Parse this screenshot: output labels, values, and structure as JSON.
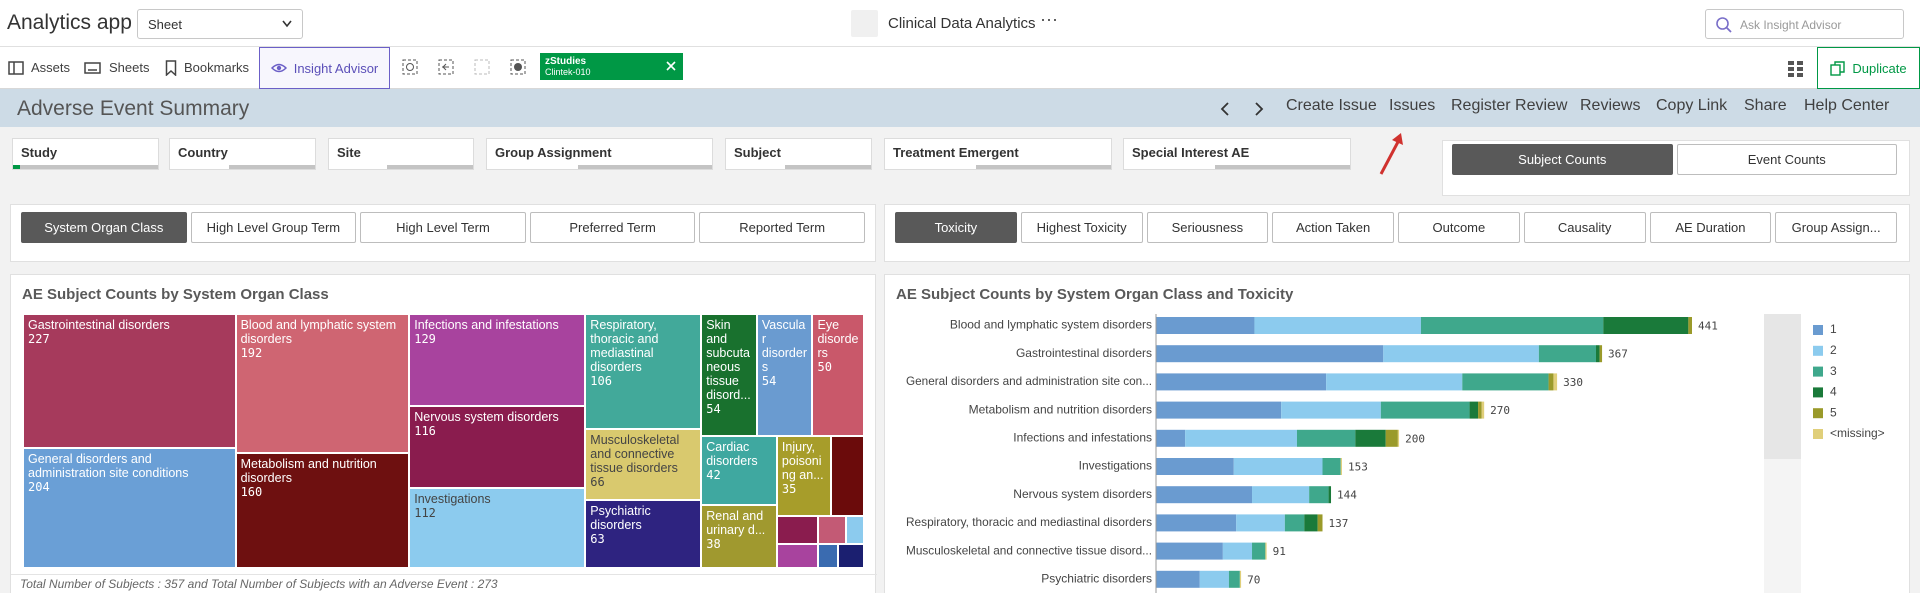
{
  "app": {
    "title": "Analytics app",
    "sheet_select": "Sheet",
    "document_title": "Clinical Data Analytics",
    "search_placeholder": "Ask Insight Advisor"
  },
  "toolbar": {
    "items": [
      "Assets",
      "Sheets",
      "Bookmarks"
    ],
    "insight_advisor": "Insight Advisor",
    "selection": {
      "field": "zStudies",
      "value": "Clintek-010"
    },
    "duplicate": "Duplicate"
  },
  "sheet": {
    "title": "Adverse Event Summary",
    "nav": [
      "Create Issue",
      "Issues",
      "Register Review",
      "Reviews",
      "Copy Link",
      "Share",
      "Help Center"
    ]
  },
  "filters": [
    "Study",
    "Country",
    "Site",
    "Group Assignment",
    "Subject",
    "Treatment Emergent",
    "Special Interest AE"
  ],
  "count_toggle": {
    "options": [
      "Subject Counts",
      "Event Counts"
    ],
    "selected": 0
  },
  "dimension_tabs": {
    "options": [
      "System Organ Class",
      "High Level Group Term",
      "High Level Term",
      "Preferred Term",
      "Reported Term"
    ],
    "selected": 0
  },
  "measure_tabs": {
    "options": [
      "Toxicity",
      "Highest Toxicity",
      "Seriousness",
      "Action Taken",
      "Outcome",
      "Causality",
      "AE Duration",
      "Group Assign..."
    ],
    "selected": 0
  },
  "chart_data": [
    {
      "type": "treemap",
      "title": "AE Subject Counts by System Organ Class",
      "categories": [
        "Gastrointestinal disorders",
        "General disorders and administration site conditions",
        "Blood and lymphatic system disorders",
        "Metabolism and nutrition disorders",
        "Infections and infestations",
        "Nervous system disorders",
        "Investigations",
        "Respiratory, thoracic and mediastinal disorders",
        "Musculoskeletal and connective tissue disorders",
        "Psychiatric disorders",
        "Skin and subcutaneous tissue disord...",
        "Vascular disorders",
        "Eye disorders",
        "Cardiac disorders",
        "Renal and urinary d...",
        "Injury, poisoning an...",
        null,
        null,
        null,
        null,
        null,
        null,
        null
      ],
      "values": [
        227,
        204,
        192,
        160,
        129,
        116,
        112,
        106,
        66,
        63,
        54,
        54,
        50,
        42,
        38,
        35,
        21,
        9,
        6,
        4,
        8,
        4,
        5
      ],
      "colors": [
        "#a63a5c",
        "#6a9fd6",
        "#cf6572",
        "#6e1010",
        "#a8439e",
        "#8a1c4e",
        "#8ccbee",
        "#42a99a",
        "#d9c96e",
        "#2e2380",
        "#19712e",
        "#6a9bd0",
        "#c9586a",
        "#3fa8a0",
        "#a0992f",
        "#a79d2a",
        "#6b0b0b",
        "#8a1c4e",
        "#c35a75",
        "#8ccbee",
        "#a8439e",
        "#3a6bb0",
        "#1b1f70"
      ]
    },
    {
      "type": "bar",
      "orientation": "horizontal",
      "stacked": true,
      "title": "AE Subject Counts by System Organ Class and Toxicity",
      "categories": [
        "Blood and lymphatic system disorders",
        "Gastrointestinal disorders",
        "General disorders and administration site con...",
        "Metabolism and nutrition disorders",
        "Infections and infestations",
        "Investigations",
        "Nervous system disorders",
        "Respiratory, thoracic and mediastinal disorders",
        "Musculoskeletal and connective tissue disord...",
        "Psychiatric disorders"
      ],
      "series": [
        {
          "name": "1",
          "color": "#6a9bd0",
          "values": [
            81,
            187,
            140,
            103,
            24,
            64,
            79,
            66,
            55,
            36
          ]
        },
        {
          "name": "2",
          "color": "#8ccbee",
          "values": [
            137,
            128,
            112,
            82,
            92,
            73,
            47,
            40,
            24,
            24
          ]
        },
        {
          "name": "3",
          "color": "#3fa88c",
          "values": [
            150,
            47,
            71,
            73,
            48,
            15,
            16,
            16,
            11,
            9
          ]
        },
        {
          "name": "4",
          "color": "#1a7a3a",
          "values": [
            70,
            3,
            0,
            7,
            25,
            0,
            2,
            11,
            0,
            0
          ]
        },
        {
          "name": "5",
          "color": "#9a9a2a",
          "values": [
            3,
            2,
            4,
            3,
            10,
            0,
            0,
            4,
            0,
            0
          ]
        },
        {
          "name": "<missing>",
          "color": "#e0cf7a",
          "values": [
            0,
            0,
            3,
            2,
            1,
            1,
            0,
            0,
            1,
            1
          ]
        }
      ],
      "totals": [
        441,
        367,
        330,
        270,
        200,
        153,
        144,
        137,
        91,
        70
      ],
      "legend": "right"
    }
  ],
  "footnote": "Total Number of Subjects : 357 and Total Number of Subjects with an Adverse Event : 273"
}
